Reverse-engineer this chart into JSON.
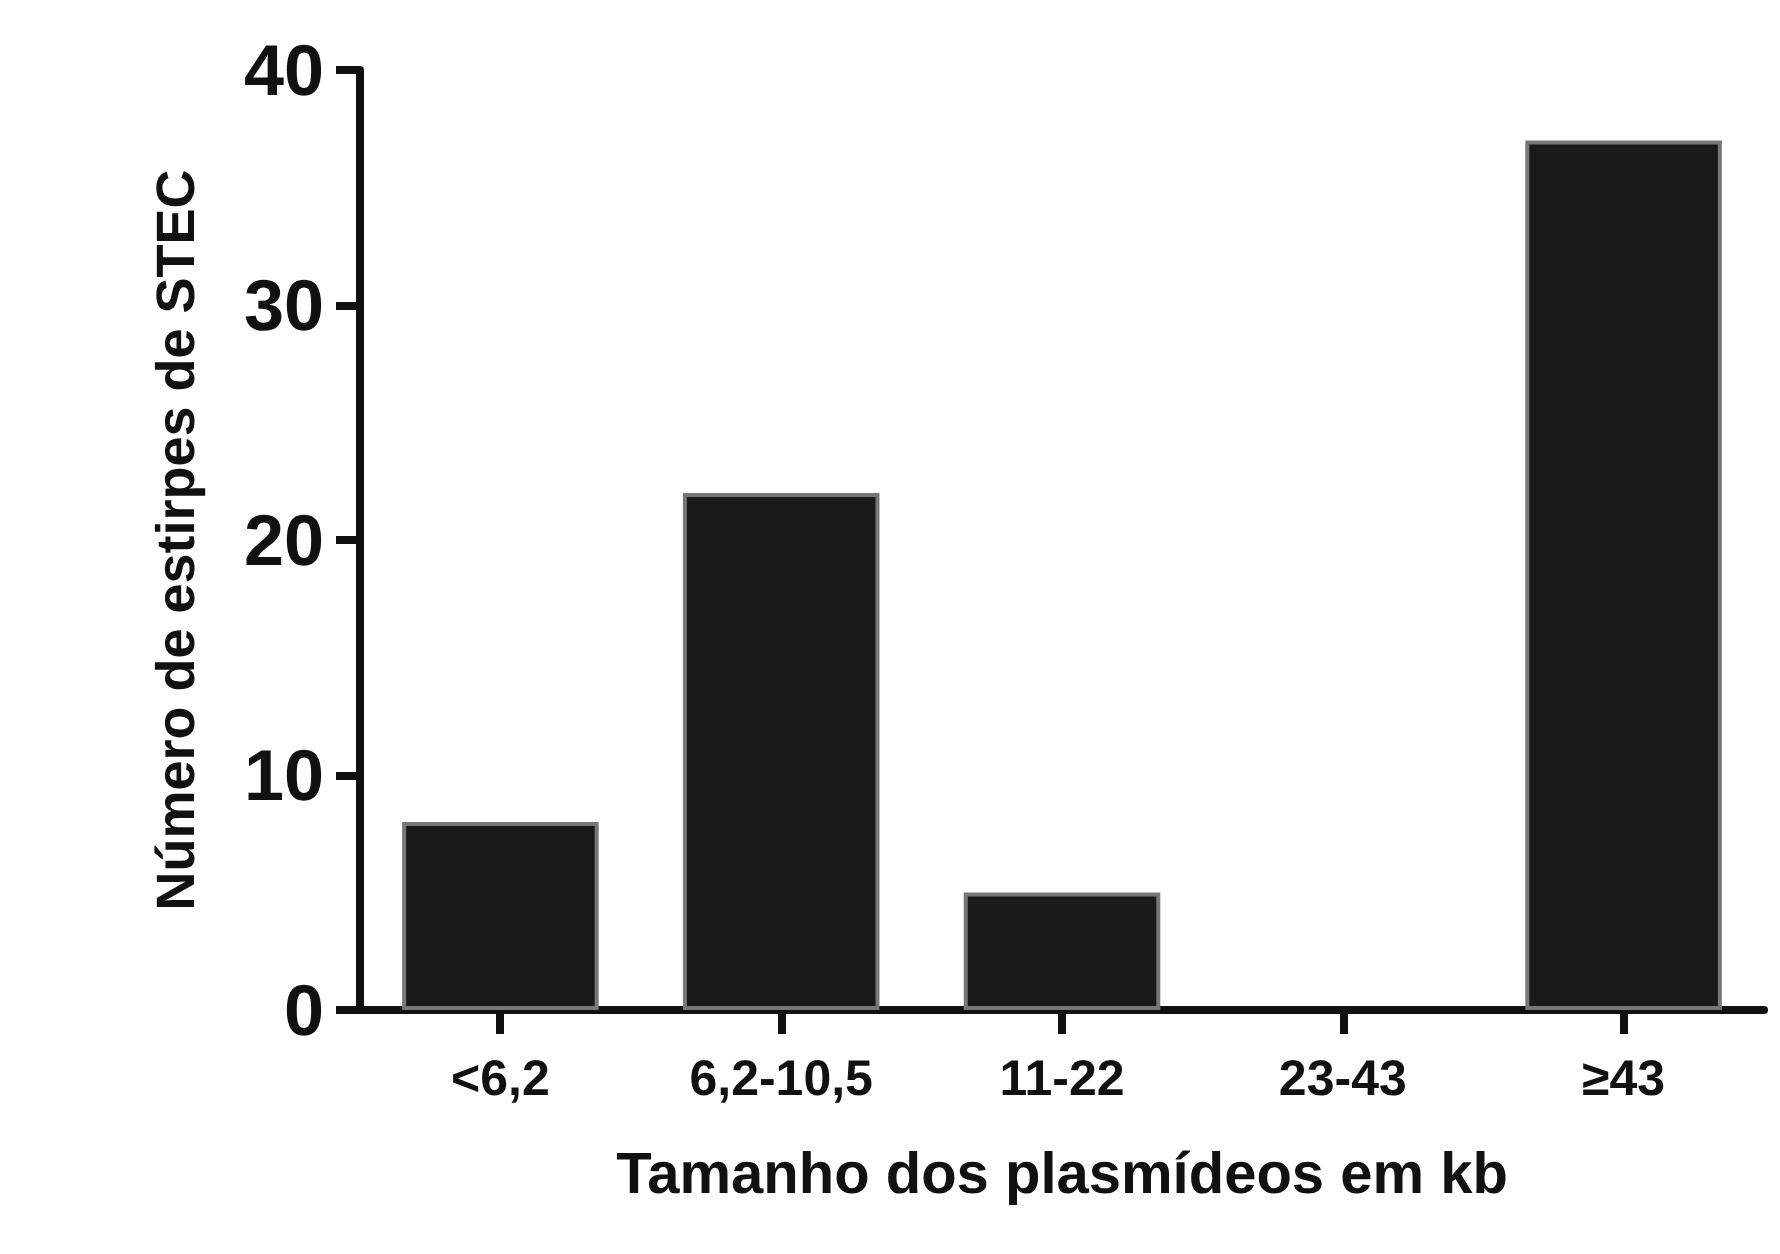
{
  "chart_data": {
    "type": "bar",
    "xlabel": "Tamanho dos plasmídeos em kb",
    "ylabel": "Número de estirpes de STEC",
    "categories": [
      "<6,2",
      "6,2-10,5",
      "11-22",
      "23-43",
      "≥43"
    ],
    "values": [
      8,
      22,
      5,
      0,
      37
    ],
    "color": "#1a1a1a",
    "ylim": [
      0,
      40
    ],
    "yticks": [
      0,
      10,
      20,
      30,
      40
    ],
    "grid": false
  }
}
